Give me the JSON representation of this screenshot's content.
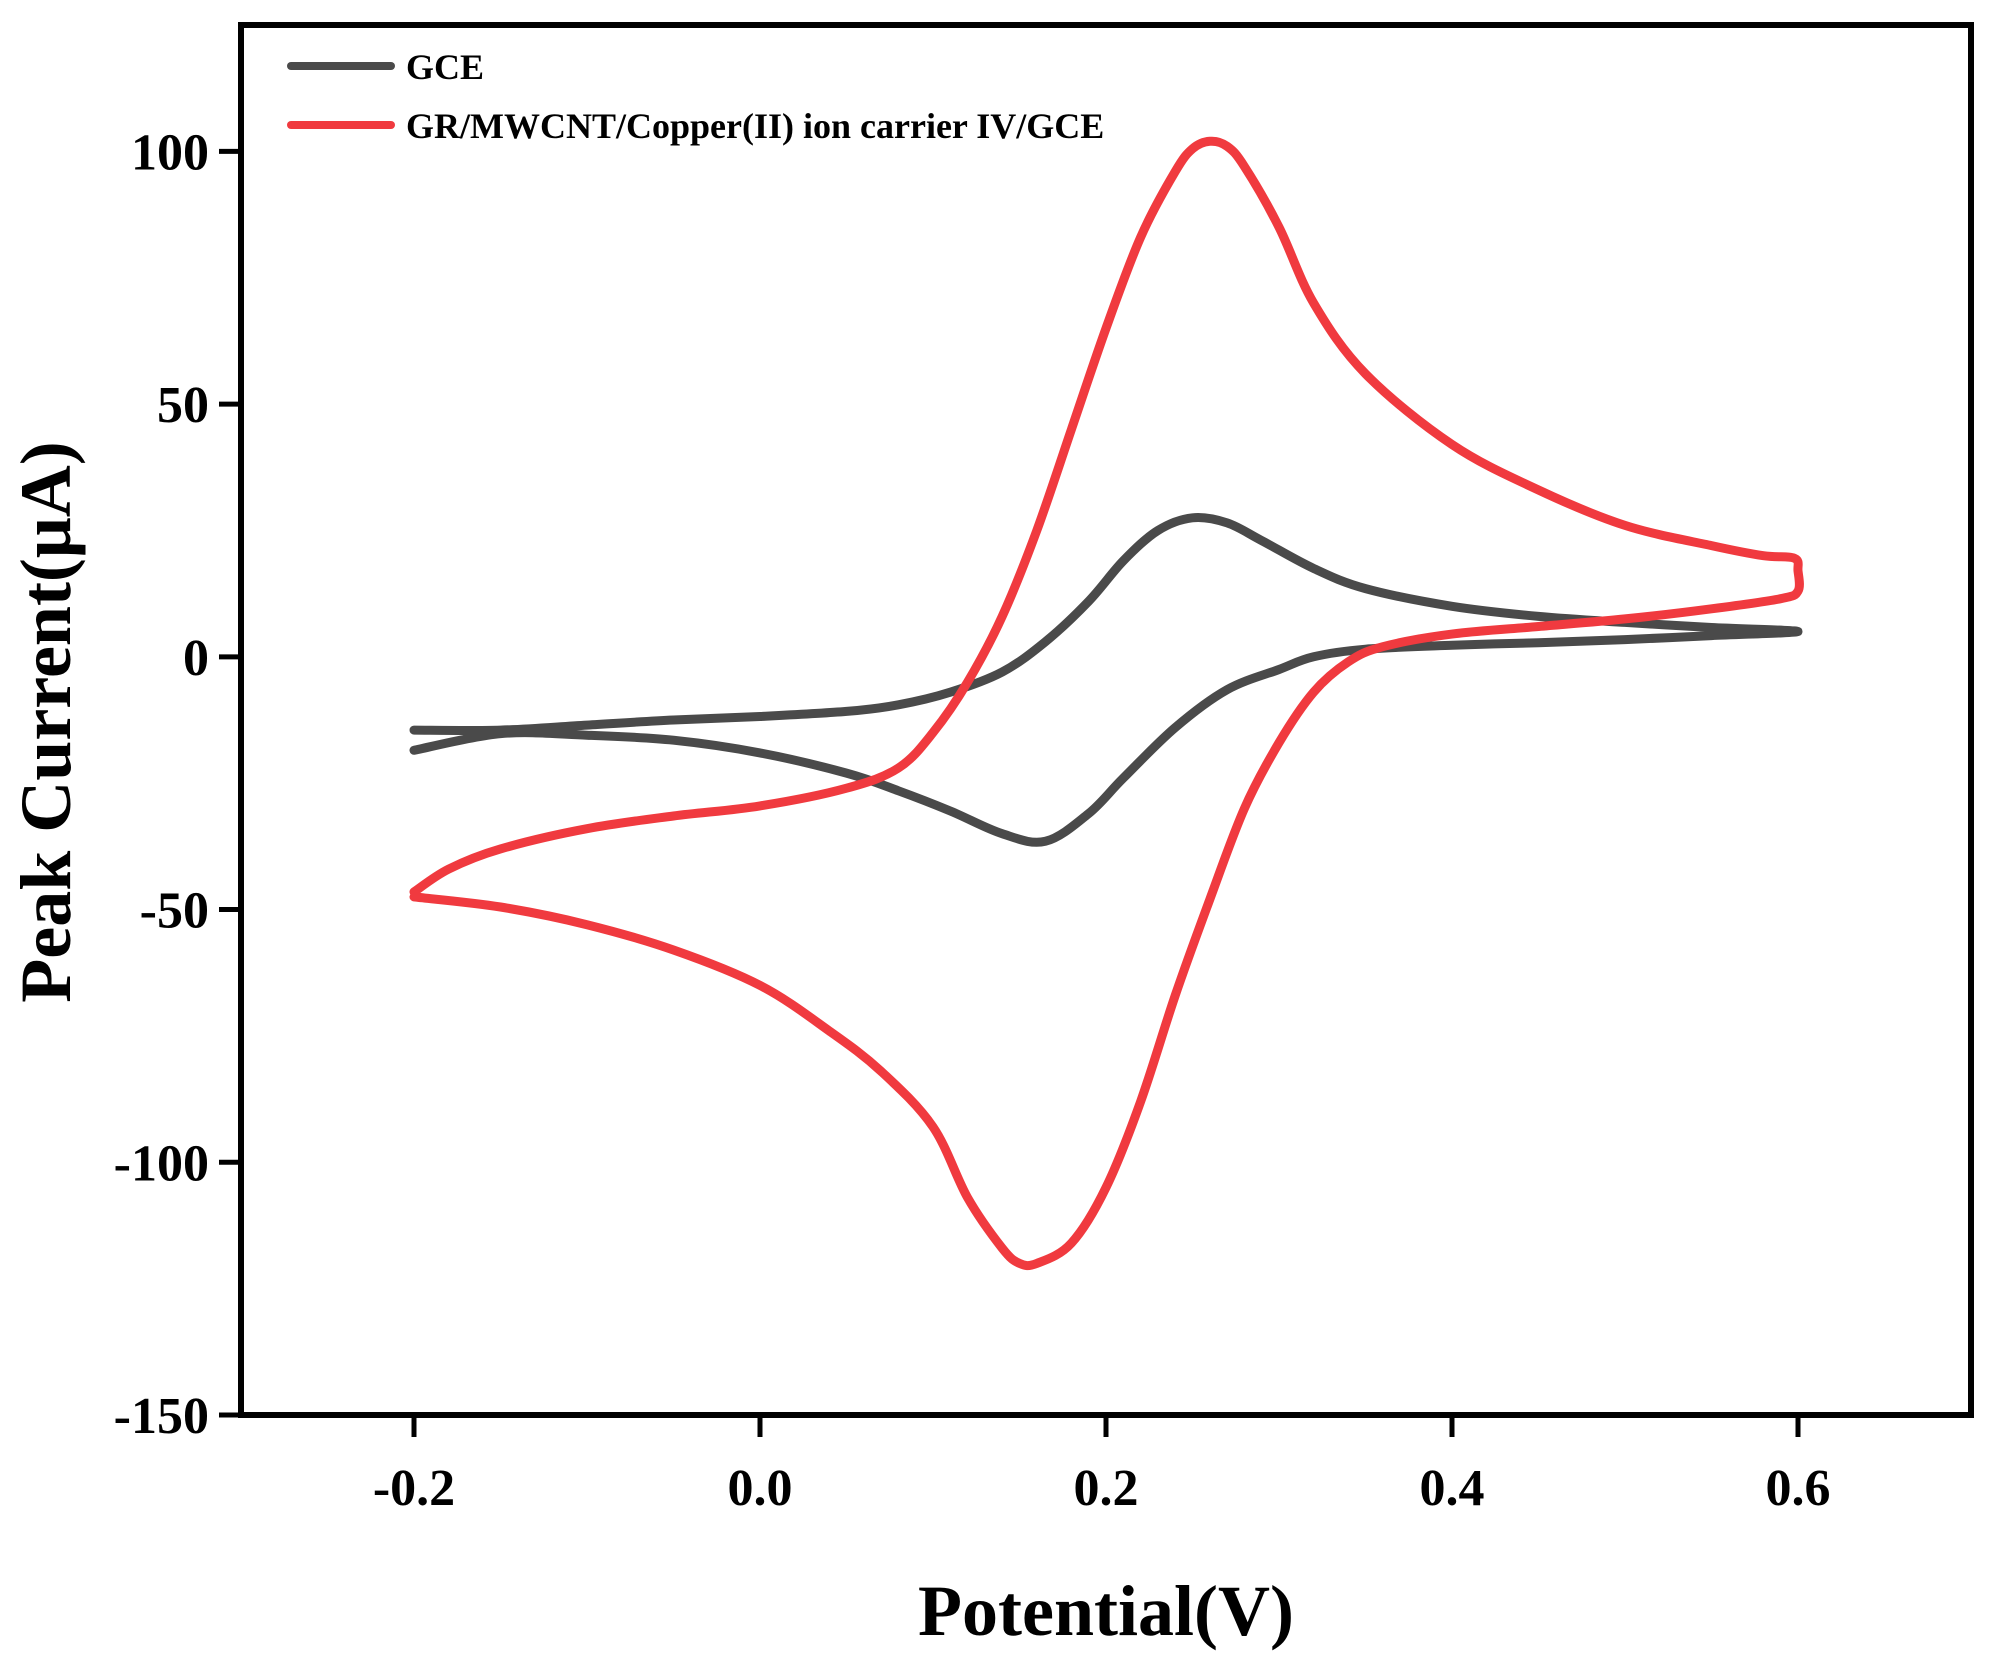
{
  "chart_data": {
    "type": "line",
    "title": "",
    "xlabel": "Potential(V)",
    "ylabel": "Peak Current(μA)",
    "xlim": [
      -0.3,
      0.7
    ],
    "ylim": [
      -150,
      125
    ],
    "xticks": [
      -0.2,
      0.0,
      0.2,
      0.4,
      0.6
    ],
    "xtick_labels": [
      "-0.2",
      "0.0",
      "0.2",
      "0.4",
      "0.6"
    ],
    "yticks": [
      -150,
      -100,
      -50,
      0,
      50,
      100
    ],
    "ytick_labels": [
      "-150",
      "-100",
      "-50",
      "0",
      "50",
      "100"
    ],
    "grid": false,
    "legend_position": "top-left",
    "series": [
      {
        "name": "GCE",
        "color": "#4a4a4a",
        "points": [
          [
            -0.2,
            -14.5
          ],
          [
            -0.15,
            -14.5
          ],
          [
            -0.1,
            -13.5
          ],
          [
            -0.05,
            -12.5
          ],
          [
            0.0,
            -11.8
          ],
          [
            0.05,
            -10.8
          ],
          [
            0.08,
            -9.5
          ],
          [
            0.11,
            -7
          ],
          [
            0.14,
            -3
          ],
          [
            0.165,
            3
          ],
          [
            0.19,
            11
          ],
          [
            0.21,
            19
          ],
          [
            0.23,
            25
          ],
          [
            0.25,
            27.5
          ],
          [
            0.27,
            26.5
          ],
          [
            0.29,
            23
          ],
          [
            0.32,
            17.5
          ],
          [
            0.35,
            13.5
          ],
          [
            0.4,
            10
          ],
          [
            0.45,
            8
          ],
          [
            0.5,
            6.8
          ],
          [
            0.55,
            5.8
          ],
          [
            0.6,
            5
          ],
          [
            0.55,
            4.2
          ],
          [
            0.5,
            3.4
          ],
          [
            0.45,
            2.8
          ],
          [
            0.4,
            2.3
          ],
          [
            0.35,
            1.5
          ],
          [
            0.32,
            0
          ],
          [
            0.3,
            -2.5
          ],
          [
            0.27,
            -6.5
          ],
          [
            0.24,
            -14
          ],
          [
            0.21,
            -24
          ],
          [
            0.19,
            -31
          ],
          [
            0.165,
            -36.5
          ],
          [
            0.14,
            -35
          ],
          [
            0.11,
            -30.5
          ],
          [
            0.08,
            -26.5
          ],
          [
            0.05,
            -23
          ],
          [
            0.0,
            -19
          ],
          [
            -0.05,
            -16.5
          ],
          [
            -0.1,
            -15.5
          ],
          [
            -0.15,
            -15.2
          ],
          [
            -0.2,
            -18.5
          ]
        ]
      },
      {
        "name": "GR/MWCNT/Copper(II) ion carrier IV/GCE",
        "color": "#f03a3f",
        "points": [
          [
            -0.2,
            -46.5
          ],
          [
            -0.18,
            -42
          ],
          [
            -0.15,
            -38
          ],
          [
            -0.1,
            -34
          ],
          [
            -0.05,
            -31.5
          ],
          [
            0.0,
            -29.5
          ],
          [
            0.05,
            -26
          ],
          [
            0.08,
            -22
          ],
          [
            0.1,
            -15
          ],
          [
            0.12,
            -5
          ],
          [
            0.14,
            8
          ],
          [
            0.16,
            25
          ],
          [
            0.18,
            45
          ],
          [
            0.2,
            65
          ],
          [
            0.22,
            83
          ],
          [
            0.24,
            96
          ],
          [
            0.25,
            100.5
          ],
          [
            0.26,
            102
          ],
          [
            0.27,
            101
          ],
          [
            0.28,
            97
          ],
          [
            0.3,
            85
          ],
          [
            0.32,
            70
          ],
          [
            0.35,
            56
          ],
          [
            0.4,
            42
          ],
          [
            0.45,
            33
          ],
          [
            0.5,
            26
          ],
          [
            0.55,
            22
          ],
          [
            0.58,
            20
          ],
          [
            0.598,
            19.5
          ],
          [
            0.6,
            17
          ],
          [
            0.6,
            13
          ],
          [
            0.59,
            11.5
          ],
          [
            0.55,
            9.5
          ],
          [
            0.5,
            7.5
          ],
          [
            0.45,
            6
          ],
          [
            0.4,
            4.5
          ],
          [
            0.36,
            2
          ],
          [
            0.34,
            -1
          ],
          [
            0.32,
            -7
          ],
          [
            0.3,
            -17
          ],
          [
            0.28,
            -30
          ],
          [
            0.26,
            -48
          ],
          [
            0.24,
            -67
          ],
          [
            0.22,
            -88
          ],
          [
            0.2,
            -105
          ],
          [
            0.18,
            -116
          ],
          [
            0.16,
            -120
          ],
          [
            0.15,
            -120
          ],
          [
            0.14,
            -117
          ],
          [
            0.12,
            -107
          ],
          [
            0.1,
            -93
          ],
          [
            0.07,
            -82
          ],
          [
            0.04,
            -74
          ],
          [
            0.0,
            -65
          ],
          [
            -0.05,
            -58
          ],
          [
            -0.1,
            -53
          ],
          [
            -0.15,
            -49.5
          ],
          [
            -0.2,
            -47.5
          ]
        ]
      }
    ]
  }
}
